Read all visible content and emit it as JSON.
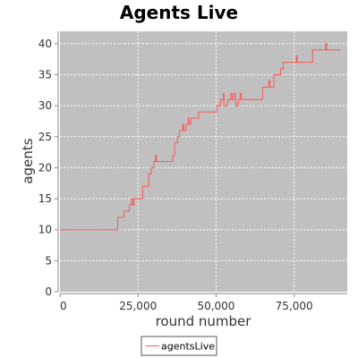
{
  "chart_data": {
    "type": "line",
    "title": "Agents Live",
    "xlabel": "round number",
    "ylabel": "agents",
    "xlim": [
      0,
      92000
    ],
    "ylim": [
      0,
      42
    ],
    "xticks": [
      0,
      25000,
      50000,
      75000
    ],
    "xtick_labels": [
      "0",
      "25,000",
      "50,000",
      "75,000"
    ],
    "yticks": [
      0,
      5,
      10,
      15,
      20,
      25,
      30,
      35,
      40
    ],
    "ytick_labels": [
      "0",
      "5",
      "10",
      "15",
      "20",
      "25",
      "30",
      "35",
      "40"
    ],
    "grid": true,
    "legend_position": "bottom-center",
    "colors": {
      "plot_background": "#c0c0c0",
      "series": "#ff5555",
      "grid": "#ffffff"
    },
    "series": [
      {
        "name": "agentsLive",
        "points": [
          [
            0,
            10
          ],
          [
            18500,
            10
          ],
          [
            18500,
            12
          ],
          [
            20500,
            12
          ],
          [
            20500,
            13
          ],
          [
            22200,
            13
          ],
          [
            22200,
            14
          ],
          [
            22900,
            14
          ],
          [
            22900,
            15
          ],
          [
            23300,
            15
          ],
          [
            23300,
            14
          ],
          [
            23700,
            14
          ],
          [
            23700,
            15
          ],
          [
            26500,
            15
          ],
          [
            26500,
            17
          ],
          [
            28400,
            17
          ],
          [
            28400,
            19
          ],
          [
            29200,
            19
          ],
          [
            29200,
            20
          ],
          [
            30100,
            20
          ],
          [
            30100,
            21
          ],
          [
            30600,
            21
          ],
          [
            30600,
            22
          ],
          [
            30900,
            22
          ],
          [
            30900,
            21
          ],
          [
            36100,
            21
          ],
          [
            36100,
            22
          ],
          [
            36700,
            22
          ],
          [
            36700,
            24
          ],
          [
            37700,
            24
          ],
          [
            37700,
            25
          ],
          [
            38300,
            25
          ],
          [
            38300,
            26
          ],
          [
            39300,
            26
          ],
          [
            39300,
            27
          ],
          [
            39600,
            27
          ],
          [
            39600,
            26
          ],
          [
            40400,
            26
          ],
          [
            40400,
            27
          ],
          [
            41100,
            27
          ],
          [
            41100,
            28
          ],
          [
            41300,
            28
          ],
          [
            41300,
            27
          ],
          [
            42000,
            27
          ],
          [
            42000,
            28
          ],
          [
            44400,
            28
          ],
          [
            44400,
            29
          ],
          [
            50200,
            29
          ],
          [
            50200,
            30
          ],
          [
            51400,
            30
          ],
          [
            51400,
            31
          ],
          [
            52300,
            31
          ],
          [
            52300,
            32
          ],
          [
            52500,
            32
          ],
          [
            52500,
            30
          ],
          [
            53700,
            30
          ],
          [
            53700,
            31
          ],
          [
            54700,
            31
          ],
          [
            54700,
            32
          ],
          [
            55100,
            32
          ],
          [
            55100,
            31
          ],
          [
            55700,
            31
          ],
          [
            55700,
            32
          ],
          [
            56300,
            32
          ],
          [
            56300,
            30
          ],
          [
            57100,
            30
          ],
          [
            57100,
            31
          ],
          [
            57700,
            31
          ],
          [
            57700,
            32
          ],
          [
            58100,
            32
          ],
          [
            58100,
            31
          ],
          [
            64900,
            31
          ],
          [
            64900,
            33
          ],
          [
            66900,
            33
          ],
          [
            66900,
            34
          ],
          [
            67300,
            34
          ],
          [
            67300,
            33
          ],
          [
            68500,
            33
          ],
          [
            68500,
            35
          ],
          [
            70700,
            35
          ],
          [
            70700,
            36
          ],
          [
            71500,
            36
          ],
          [
            71500,
            37
          ],
          [
            75700,
            37
          ],
          [
            75700,
            38
          ],
          [
            76000,
            38
          ],
          [
            76000,
            37
          ],
          [
            80900,
            37
          ],
          [
            80900,
            39
          ],
          [
            85100,
            39
          ],
          [
            85100,
            40
          ],
          [
            85400,
            40
          ],
          [
            85400,
            39
          ],
          [
            89800,
            39
          ]
        ]
      }
    ]
  }
}
